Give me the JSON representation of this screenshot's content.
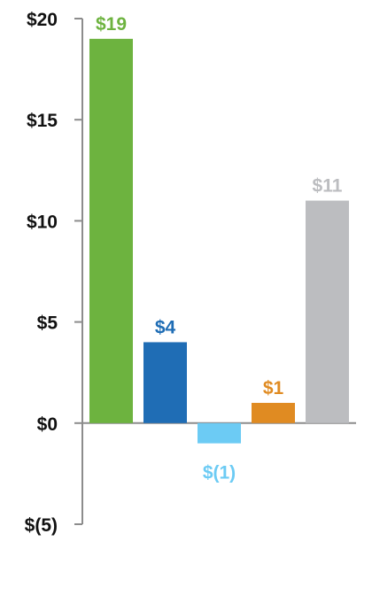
{
  "chart_data": {
    "type": "bar",
    "title": "",
    "xlabel": "",
    "ylabel": "",
    "ylim": [
      -5,
      20
    ],
    "yticks": [
      20,
      15,
      10,
      5,
      0,
      -5
    ],
    "ytick_labels": [
      "$20",
      "$15",
      "$10",
      "$5",
      "$0",
      "$(5)"
    ],
    "grid": false,
    "legend": "none",
    "values": [
      19,
      4,
      -1,
      1,
      11
    ],
    "labels": [
      "$19",
      "$4",
      "$(1)",
      "$1",
      "$11"
    ],
    "colors": [
      "#6db33f",
      "#1f6db5",
      "#6ccbf4",
      "#e08b22",
      "#bcbdc0"
    ]
  }
}
